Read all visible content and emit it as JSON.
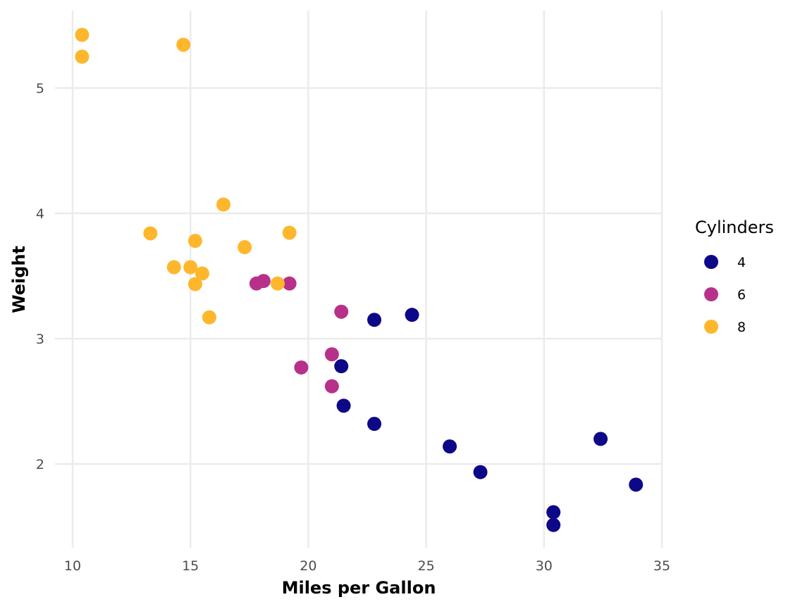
{
  "chart_data": {
    "type": "scatter",
    "title": "",
    "xlabel": "Miles per Gallon",
    "ylabel": "Weight",
    "xlim": [
      9.2,
      35.0
    ],
    "ylim": [
      1.35,
      5.6
    ],
    "x_ticks": [
      10,
      15,
      20,
      25,
      30,
      35
    ],
    "y_ticks": [
      2,
      3,
      4,
      5
    ],
    "grid": true,
    "legend": {
      "title": "Cylinders",
      "position": "right",
      "entries": [
        {
          "label": "4",
          "color": "#0D0887"
        },
        {
          "label": "6",
          "color": "#B7318A"
        },
        {
          "label": "8",
          "color": "#FEB72D"
        }
      ]
    },
    "series": [
      {
        "name": "4",
        "color": "#0D0887",
        "points": [
          {
            "x": 22.8,
            "y": 2.32
          },
          {
            "x": 24.4,
            "y": 3.19
          },
          {
            "x": 22.8,
            "y": 3.15
          },
          {
            "x": 32.4,
            "y": 2.2
          },
          {
            "x": 30.4,
            "y": 1.615
          },
          {
            "x": 33.9,
            "y": 1.835
          },
          {
            "x": 21.5,
            "y": 2.465
          },
          {
            "x": 27.3,
            "y": 1.935
          },
          {
            "x": 26.0,
            "y": 2.14
          },
          {
            "x": 30.4,
            "y": 1.513
          },
          {
            "x": 21.4,
            "y": 2.78
          }
        ]
      },
      {
        "name": "6",
        "color": "#B7318A",
        "points": [
          {
            "x": 21.0,
            "y": 2.62
          },
          {
            "x": 21.0,
            "y": 2.875
          },
          {
            "x": 21.4,
            "y": 3.215
          },
          {
            "x": 18.1,
            "y": 3.46
          },
          {
            "x": 19.2,
            "y": 3.44
          },
          {
            "x": 17.8,
            "y": 3.44
          },
          {
            "x": 19.7,
            "y": 2.77
          }
        ]
      },
      {
        "name": "8",
        "color": "#FEB72D",
        "points": [
          {
            "x": 18.7,
            "y": 3.44
          },
          {
            "x": 14.3,
            "y": 3.57
          },
          {
            "x": 16.4,
            "y": 4.07
          },
          {
            "x": 17.3,
            "y": 3.73
          },
          {
            "x": 15.2,
            "y": 3.78
          },
          {
            "x": 10.4,
            "y": 5.25
          },
          {
            "x": 10.4,
            "y": 5.424
          },
          {
            "x": 14.7,
            "y": 5.345
          },
          {
            "x": 15.5,
            "y": 3.52
          },
          {
            "x": 15.2,
            "y": 3.435
          },
          {
            "x": 13.3,
            "y": 3.84
          },
          {
            "x": 19.2,
            "y": 3.845
          },
          {
            "x": 15.8,
            "y": 3.17
          },
          {
            "x": 15.0,
            "y": 3.57
          }
        ]
      }
    ]
  }
}
